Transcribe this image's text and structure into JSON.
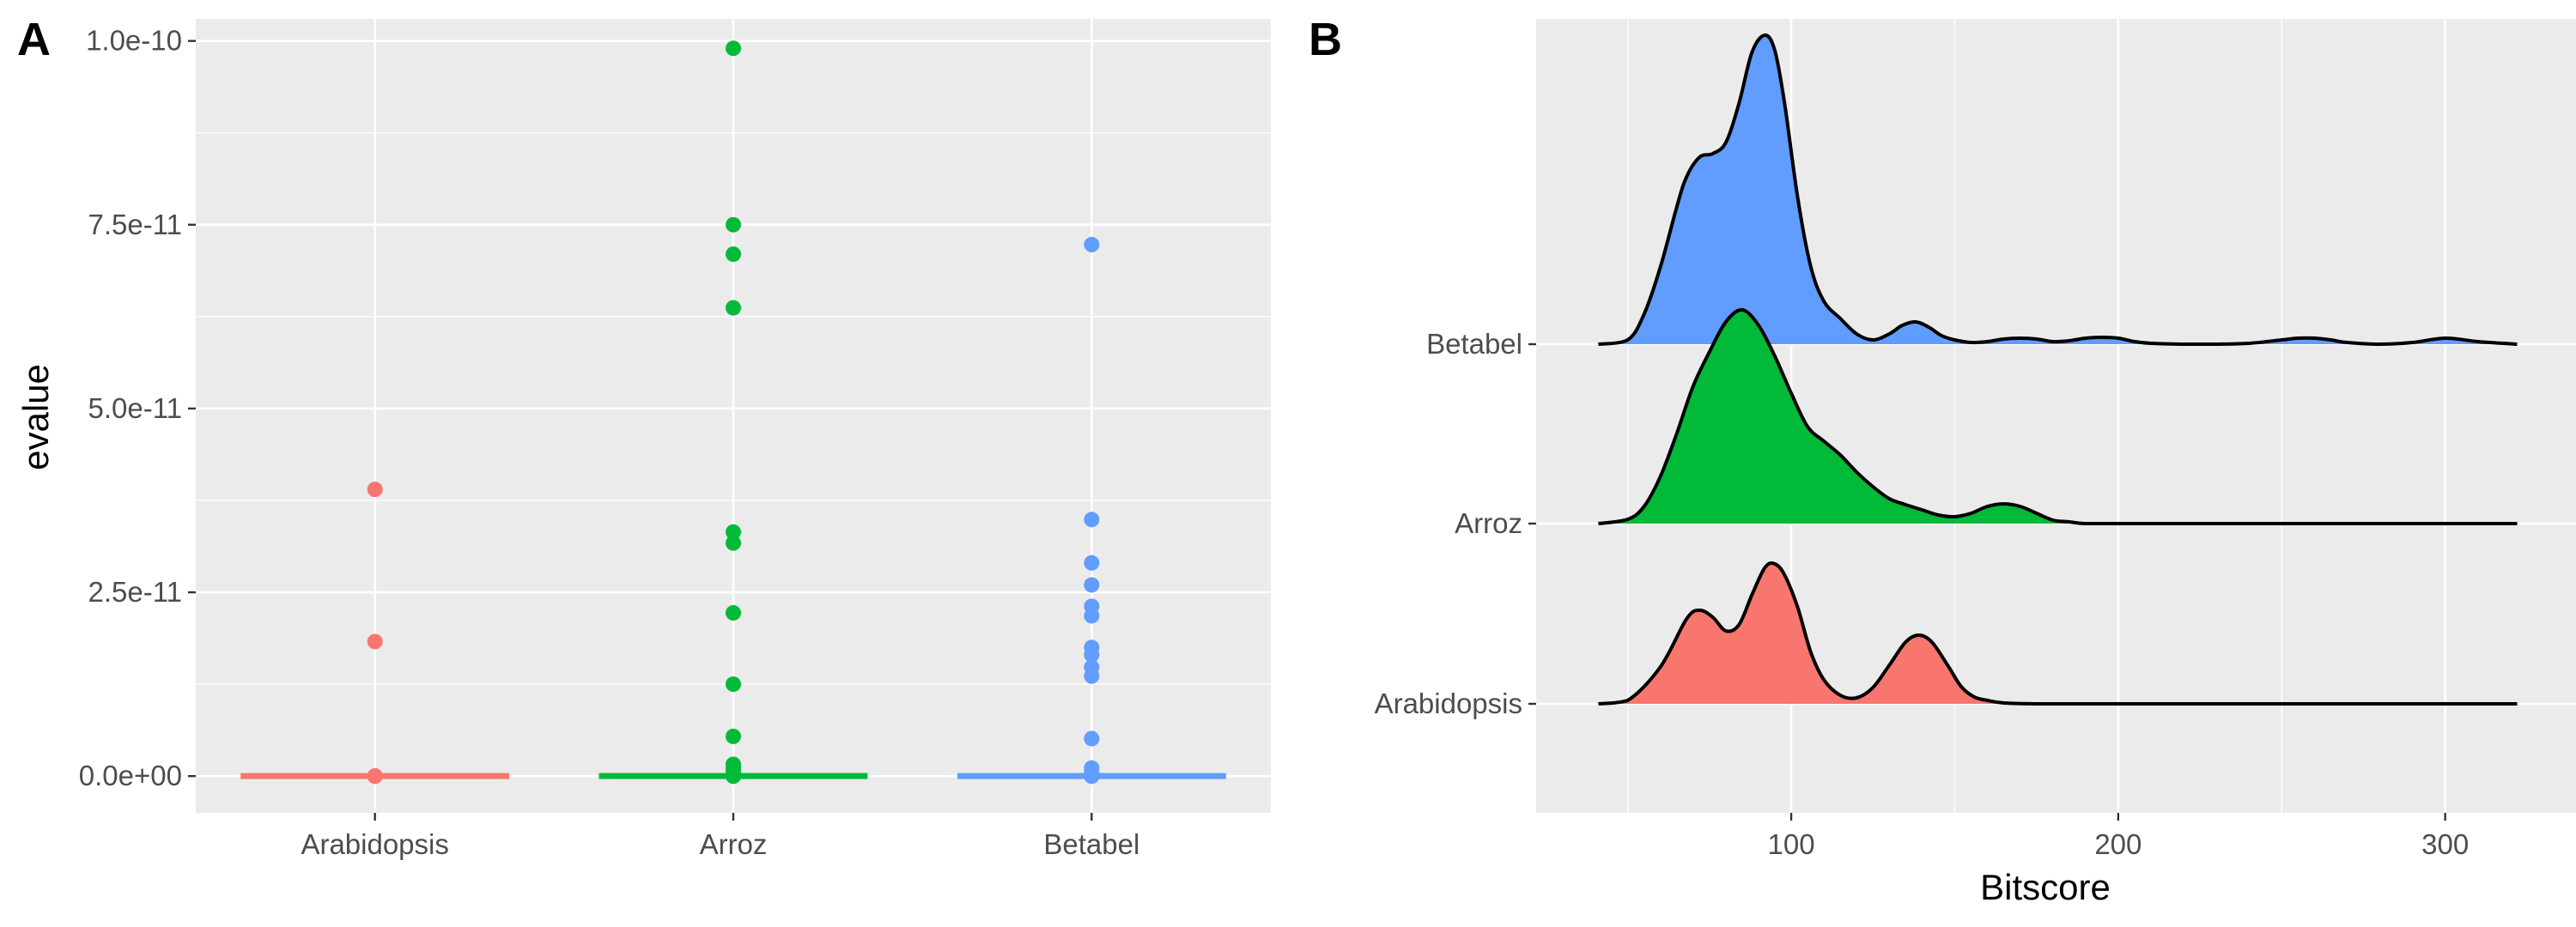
{
  "chart_data": [
    {
      "panel_label": "A",
      "type": "scatter",
      "title": "",
      "xlabel": "",
      "ylabel": "evalue",
      "categories": [
        "Arabidopsis",
        "Arroz",
        "Betabel"
      ],
      "ylim": [
        -5e-12,
        1.03e-10
      ],
      "yticks": [
        0,
        2.5e-11,
        5e-11,
        7.5e-11,
        1e-10
      ],
      "ytick_labels": [
        "0.0e+00",
        "2.5e-11",
        "5.0e-11",
        "7.5e-11",
        "1.0e-10"
      ],
      "grid": true,
      "legend": "none",
      "series": [
        {
          "category": "Arabidopsis",
          "color": "#F8766D",
          "points": [
            3.9e-11,
            1.83e-11,
            0,
            0,
            0,
            0,
            0,
            0,
            0,
            0,
            0,
            0,
            0
          ]
        },
        {
          "category": "Arroz",
          "color": "#00BA38",
          "points": [
            9.9e-11,
            7.5e-11,
            7.1e-11,
            6.37e-11,
            3.32e-11,
            3.17e-11,
            2.22e-11,
            1.25e-11,
            5.4e-12,
            1.6e-12,
            1.1e-12,
            6e-13,
            2e-13,
            0,
            0,
            0,
            0,
            0,
            0
          ]
        },
        {
          "category": "Betabel",
          "color": "#619CFF",
          "points": [
            7.23e-11,
            3.49e-11,
            2.9e-11,
            2.6e-11,
            2.31e-11,
            2.18e-11,
            1.75e-11,
            1.65e-11,
            1.48e-11,
            1.36e-11,
            5.1e-12,
            1.1e-12,
            5e-13,
            2e-13,
            0,
            0,
            0,
            0,
            0,
            0
          ]
        }
      ]
    },
    {
      "panel_label": "B",
      "type": "area",
      "title": "",
      "xlabel": "Bitscore",
      "ylabel": "",
      "xlim": [
        22,
        340
      ],
      "xticks": [
        100,
        200,
        300
      ],
      "xtick_labels": [
        "100",
        "200",
        "300"
      ],
      "categories": [
        "Arabidopsis",
        "Arroz",
        "Betabel"
      ],
      "grid": true,
      "legend": "none",
      "series": [
        {
          "name": "Arabidopsis",
          "color": "#F8766D",
          "x": [
            41,
            50,
            60,
            68,
            72,
            76,
            80,
            84,
            88,
            92,
            95,
            98,
            102,
            106,
            110,
            115,
            120,
            125,
            130,
            135,
            139,
            143,
            148,
            152,
            156,
            160,
            165,
            175,
            185,
            200,
            250,
            300,
            322
          ],
          "density": [
            0.0,
            0.04,
            0.43,
            0.99,
            1.09,
            1.01,
            0.85,
            0.92,
            1.27,
            1.59,
            1.63,
            1.5,
            1.12,
            0.6,
            0.28,
            0.1,
            0.07,
            0.19,
            0.45,
            0.72,
            0.8,
            0.72,
            0.44,
            0.2,
            0.08,
            0.04,
            0.01,
            0.0,
            0.0,
            0.0,
            0.0,
            0.0,
            0.0
          ]
        },
        {
          "name": "Arroz",
          "color": "#00BA38",
          "x": [
            41,
            50,
            55,
            60,
            65,
            70,
            75,
            80,
            85,
            90,
            95,
            100,
            105,
            110,
            115,
            120,
            125,
            130,
            135,
            140,
            145,
            150,
            155,
            160,
            165,
            170,
            175,
            180,
            185,
            190,
            200,
            250,
            300,
            322
          ],
          "density": [
            0.0,
            0.05,
            0.2,
            0.55,
            1.05,
            1.6,
            2.0,
            2.35,
            2.49,
            2.31,
            1.95,
            1.52,
            1.13,
            0.96,
            0.8,
            0.6,
            0.43,
            0.29,
            0.22,
            0.16,
            0.1,
            0.08,
            0.12,
            0.2,
            0.23,
            0.2,
            0.12,
            0.04,
            0.02,
            0.0,
            0.0,
            0.0,
            0.0,
            0.0
          ]
        },
        {
          "name": "Betabel",
          "color": "#619CFF",
          "x": [
            41,
            50,
            55,
            60,
            65,
            68,
            72,
            76,
            80,
            84,
            88,
            92,
            95,
            98,
            102,
            106,
            110,
            115,
            120,
            125,
            130,
            134,
            138,
            142,
            146,
            150,
            155,
            160,
            165,
            170,
            175,
            180,
            185,
            190,
            195,
            200,
            205,
            210,
            220,
            230,
            240,
            250,
            255,
            260,
            265,
            270,
            280,
            290,
            300,
            310,
            322
          ],
          "density": [
            0.0,
            0.05,
            0.35,
            0.9,
            1.6,
            1.95,
            2.18,
            2.22,
            2.35,
            2.8,
            3.4,
            3.6,
            3.42,
            2.8,
            1.7,
            0.9,
            0.5,
            0.3,
            0.12,
            0.05,
            0.12,
            0.22,
            0.26,
            0.2,
            0.1,
            0.05,
            0.02,
            0.03,
            0.06,
            0.07,
            0.06,
            0.03,
            0.04,
            0.07,
            0.08,
            0.07,
            0.03,
            0.01,
            0.0,
            0.0,
            0.01,
            0.05,
            0.07,
            0.07,
            0.05,
            0.02,
            0.0,
            0.02,
            0.07,
            0.03,
            0.0
          ]
        }
      ]
    }
  ]
}
